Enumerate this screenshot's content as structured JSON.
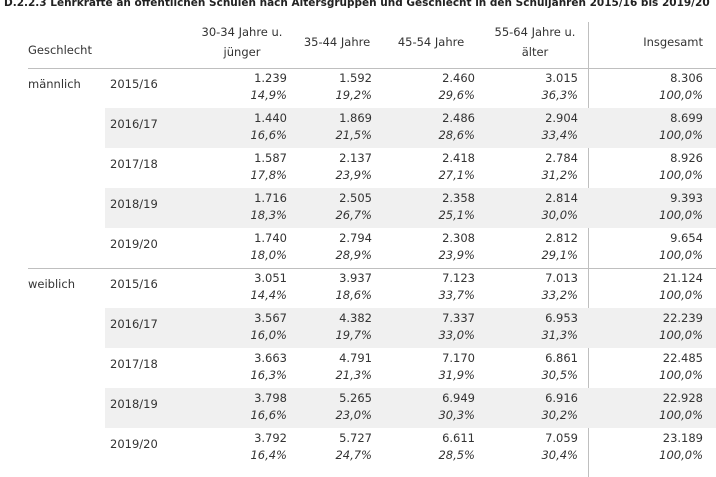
{
  "title": "D.2.2.3 Lehrkräfte an öffentlichen Schulen nach Altersgruppen und Geschlecht in den Schuljahren 2015/16 bis 2019/20",
  "header": {
    "group": "Geschlecht",
    "columns": [
      "30-34 Jahre u. jünger",
      "35-44 Jahre",
      "45-54 Jahre",
      "55-64 Jahre u. älter",
      "Insgesamt"
    ]
  },
  "groups": [
    {
      "label": "männlich",
      "rows": [
        {
          "year": "2015/16",
          "counts": [
            "1.239",
            "1.592",
            "2.460",
            "3.015",
            "8.306"
          ],
          "shares": [
            "14,9%",
            "19,2%",
            "29,6%",
            "36,3%",
            "100,0%"
          ]
        },
        {
          "year": "2016/17",
          "counts": [
            "1.440",
            "1.869",
            "2.486",
            "2.904",
            "8.699"
          ],
          "shares": [
            "16,6%",
            "21,5%",
            "28,6%",
            "33,4%",
            "100,0%"
          ]
        },
        {
          "year": "2017/18",
          "counts": [
            "1.587",
            "2.137",
            "2.418",
            "2.784",
            "8.926"
          ],
          "shares": [
            "17,8%",
            "23,9%",
            "27,1%",
            "31,2%",
            "100,0%"
          ]
        },
        {
          "year": "2018/19",
          "counts": [
            "1.716",
            "2.505",
            "2.358",
            "2.814",
            "9.393"
          ],
          "shares": [
            "18,3%",
            "26,7%",
            "25,1%",
            "30,0%",
            "100,0%"
          ]
        },
        {
          "year": "2019/20",
          "counts": [
            "1.740",
            "2.794",
            "2.308",
            "2.812",
            "9.654"
          ],
          "shares": [
            "18,0%",
            "28,9%",
            "23,9%",
            "29,1%",
            "100,0%"
          ]
        }
      ]
    },
    {
      "label": "weiblich",
      "rows": [
        {
          "year": "2015/16",
          "counts": [
            "3.051",
            "3.937",
            "7.123",
            "7.013",
            "21.124"
          ],
          "shares": [
            "14,4%",
            "18,6%",
            "33,7%",
            "33,2%",
            "100,0%"
          ]
        },
        {
          "year": "2016/17",
          "counts": [
            "3.567",
            "4.382",
            "7.337",
            "6.953",
            "22.239"
          ],
          "shares": [
            "16,0%",
            "19,7%",
            "33,0%",
            "31,3%",
            "100,0%"
          ]
        },
        {
          "year": "2017/18",
          "counts": [
            "3.663",
            "4.791",
            "7.170",
            "6.861",
            "22.485"
          ],
          "shares": [
            "16,3%",
            "21,3%",
            "31,9%",
            "30,5%",
            "100,0%"
          ]
        },
        {
          "year": "2018/19",
          "counts": [
            "3.798",
            "5.265",
            "6.949",
            "6.916",
            "22.928"
          ],
          "shares": [
            "16,6%",
            "23,0%",
            "30,3%",
            "30,2%",
            "100,0%"
          ]
        },
        {
          "year": "2019/20",
          "counts": [
            "3.792",
            "5.727",
            "6.611",
            "7.059",
            "23.189"
          ],
          "shares": [
            "16,4%",
            "24,7%",
            "28,5%",
            "30,4%",
            "100,0%"
          ]
        }
      ]
    }
  ]
}
